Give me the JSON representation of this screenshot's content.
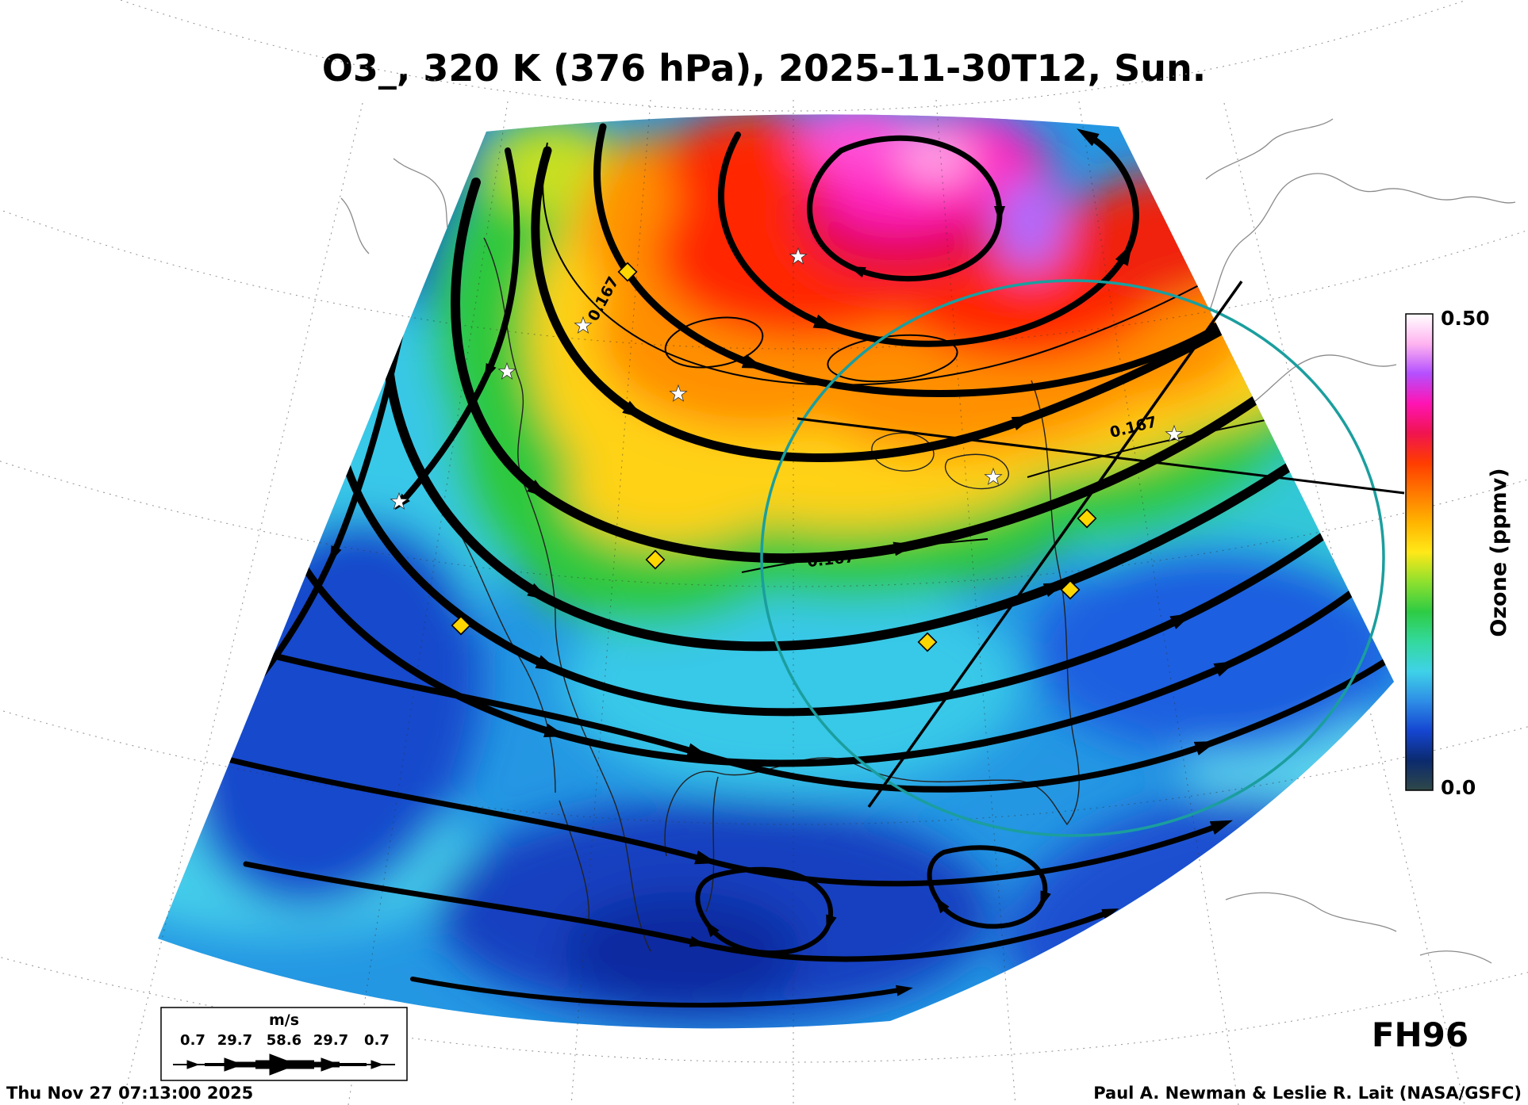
{
  "title": "O3_, 320 K (376 hPa), 2025-11-30T12, Sun.",
  "map": {
    "contour_label": "0.167"
  },
  "colorbar": {
    "label": "Ozone (ppmv)",
    "max": "0.50",
    "min": "0.0",
    "stops": [
      "#2f4848",
      "#0b2a6e",
      "#1546d2",
      "#2e8ee6",
      "#3fd2e8",
      "#33d99c",
      "#2ecc44",
      "#8ee02e",
      "#ffe818",
      "#ffb400",
      "#ff7800",
      "#ff3c00",
      "#f01450",
      "#ff14b4",
      "#b450ff",
      "#ffb4f0",
      "#ffffff"
    ]
  },
  "wind_legend": {
    "units": "m/s",
    "speeds": [
      "0.7",
      "29.7",
      "58.6",
      "29.7",
      "0.7"
    ]
  },
  "footer": {
    "forecast_hour": "FH96",
    "timestamp": "Thu Nov 27 07:13:00 2025",
    "credit": "Paul A. Newman & Leslie R. Lait (NASA/GSFC)"
  },
  "chart_data": {
    "type": "heatmap",
    "title": "O3_, 320 K (376 hPa), 2025-11-30T12, Sun.",
    "variable": "Ozone",
    "units": "ppmv",
    "level": "320 K (376 hPa)",
    "valid_time": "2025-11-30T12",
    "valid_day": "Sun.",
    "forecast_hour": 96,
    "colorbar_range": [
      0.0,
      0.5
    ],
    "colorbar_label": "Ozone (ppmv)",
    "contour_levels_ppmv": [
      0.167
    ],
    "wind_speed_legend_ms": [
      0.7,
      29.7,
      58.6,
      29.7,
      0.7
    ],
    "projection": "polar stereographic sector over North America",
    "field_description": "High ozone (0.3-0.5 ppmv, red/magenta) in cyclonic vortex over northern Canada; yellow-green tongue (~0.17-0.25 ppmv) arcing from the Pacific Northwest across the central U.S.; low ozone (~0.05-0.12 ppmv, blue/cyan) over the subtropics and southern half of the domain",
    "overlays": [
      "black wind streamlines with arrowheads",
      "0.167 ppmv ozone contour lines",
      "teal range circle over eastern North America",
      "two black great-circle lines crossing the circle",
      "yellow diamond site markers",
      "white star city markers",
      "dashed lat-lon graticule",
      "coastlines"
    ]
  }
}
